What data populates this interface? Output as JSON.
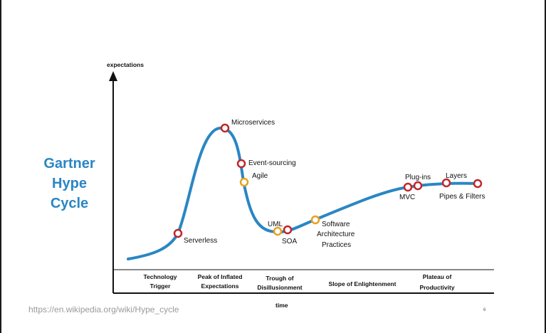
{
  "title_lines": [
    "Gartner",
    "Hype",
    "Cycle"
  ],
  "source_url": "https://en.wikipedia.org/wiki/Hype_cycle",
  "page_number": "6",
  "diagram": {
    "y_axis_label": "expectations",
    "x_axis_label": "time",
    "curve_color": "#2a86c4",
    "marker_colors": {
      "red": "#c0262b",
      "orange": "#e8a020"
    },
    "phases": [
      {
        "line1": "Technology",
        "line2": "Trigger"
      },
      {
        "line1": "Peak of Inflated",
        "line2": "Expectations"
      },
      {
        "line1": "Trough of",
        "line2": "Disillusionment"
      },
      {
        "line1": "",
        "line2": "Slope of Enlightenment"
      },
      {
        "line1": "Plateau of",
        "line2": "Productivity"
      }
    ],
    "points": [
      {
        "label": "Serverless",
        "color": "red"
      },
      {
        "label": "Microservices",
        "color": "red"
      },
      {
        "label": "Event-sourcing",
        "color": "red"
      },
      {
        "label": "Agile",
        "color": "orange"
      },
      {
        "label": "UML",
        "color": "orange"
      },
      {
        "label": "SOA",
        "color": "red"
      },
      {
        "label_lines": [
          "Software",
          "Architecture",
          "Practices"
        ],
        "color": "orange"
      },
      {
        "label": "MVC",
        "color": "red"
      },
      {
        "label": "Plug-ins",
        "color": "red"
      },
      {
        "label": "Layers",
        "color": "red"
      },
      {
        "label": "Pipes & Filters",
        "color": "red"
      }
    ]
  }
}
